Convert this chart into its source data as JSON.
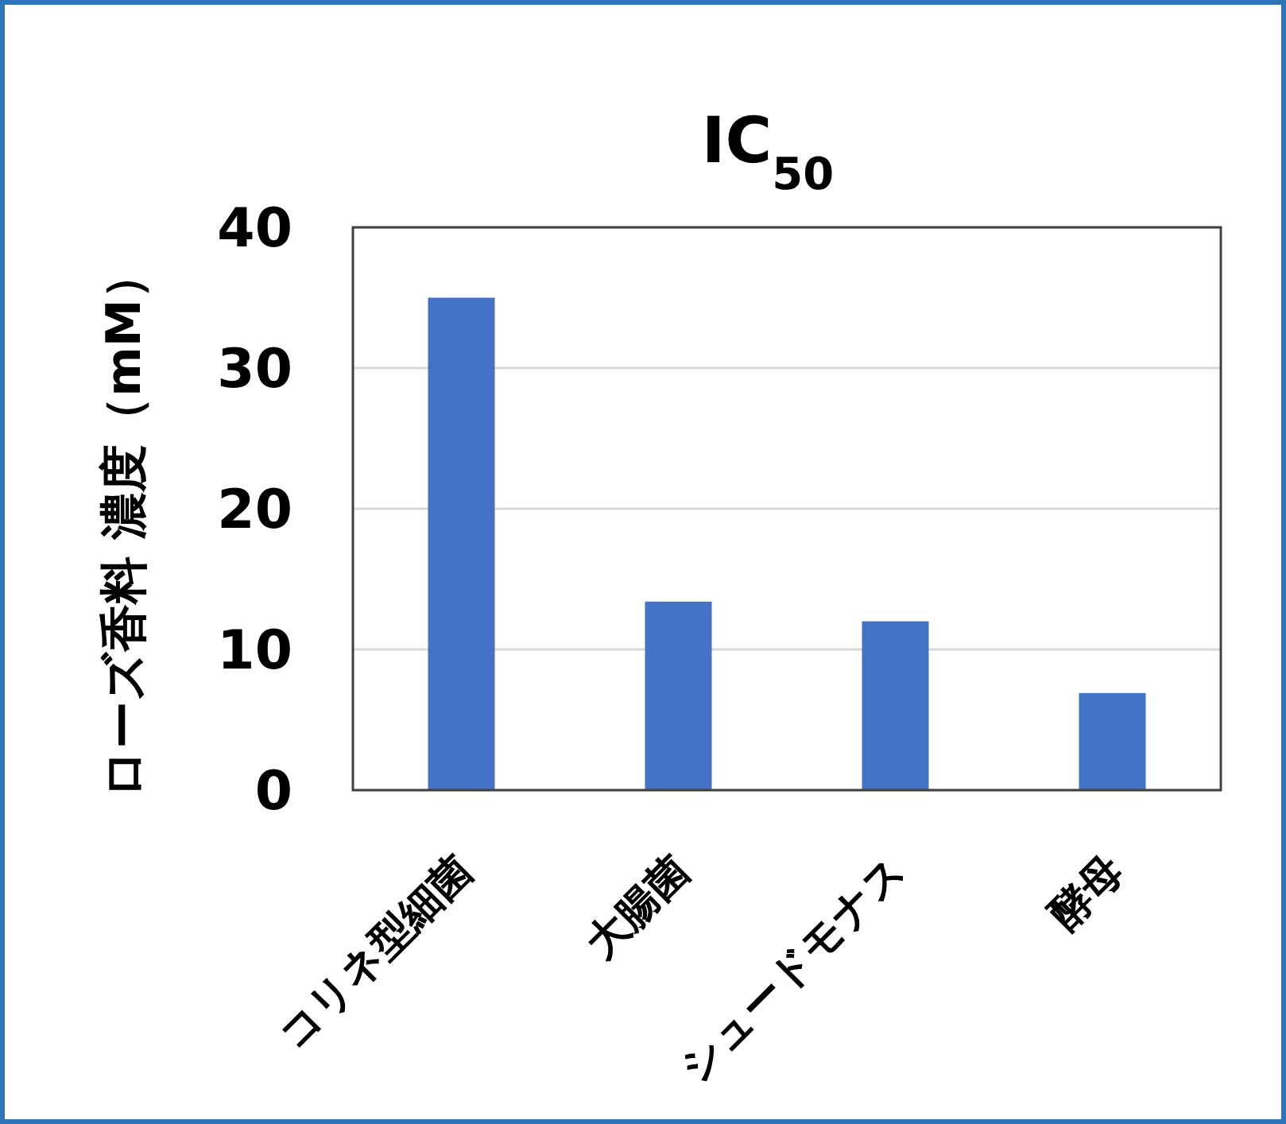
{
  "chart_data": {
    "type": "bar",
    "title": "IC$_{50}$",
    "ylabel": "ローズ香料 濃度（mM）",
    "categories": [
      "コリネ型細菌",
      "大腸菌",
      "シュードモナス",
      "酵母"
    ],
    "values": [
      35,
      13.4,
      12,
      6.9
    ],
    "color": "#4472c4",
    "ylim": [
      0,
      40
    ],
    "yticks": [
      0,
      10,
      20,
      30,
      40
    ],
    "grid": "y"
  }
}
